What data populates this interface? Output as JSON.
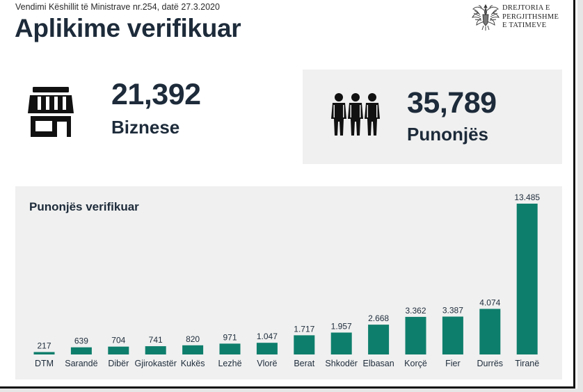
{
  "header": {
    "subtitle": "Vendimi Këshillit të Ministrave nr.254, datë 27.3.2020",
    "title": "Aplikime verifikuar"
  },
  "org": {
    "line1": "DREJTORIA E",
    "line2": "PERGJITHSHME",
    "line3": "E TATIMEVE",
    "logo_icon": "double-headed-eagle-emblem-icon"
  },
  "kpis": {
    "businesses": {
      "value": "21,392",
      "label": "Biznese",
      "icon": "storefront-icon"
    },
    "employees": {
      "value": "35,789",
      "label": "Punonjës",
      "icon": "people-group-icon"
    }
  },
  "colors": {
    "bar": "#0e7e6c",
    "text": "#1d2b3a",
    "panel": "#f0f0f0"
  },
  "chart_data": {
    "type": "bar",
    "title": "Punonjës verifikuar",
    "categories": [
      "DTM",
      "Sarandë",
      "Dibër",
      "Gjirokastër",
      "Kukës",
      "Lezhë",
      "Vlorë",
      "Berat",
      "Shkodër",
      "Elbasan",
      "Korçë",
      "Fier",
      "Durrës",
      "Tiranë"
    ],
    "values": [
      217,
      639,
      704,
      741,
      820,
      971,
      1047,
      1717,
      1957,
      2668,
      3362,
      3387,
      4074,
      13485
    ],
    "value_labels": [
      "217",
      "639",
      "704",
      "741",
      "820",
      "971",
      "1.047",
      "1.717",
      "1.957",
      "2.668",
      "3.362",
      "3.387",
      "4.074",
      "13.485"
    ],
    "xlabel": "",
    "ylabel": "",
    "ylim": [
      0,
      13485
    ],
    "grid": false,
    "legend": "none"
  }
}
